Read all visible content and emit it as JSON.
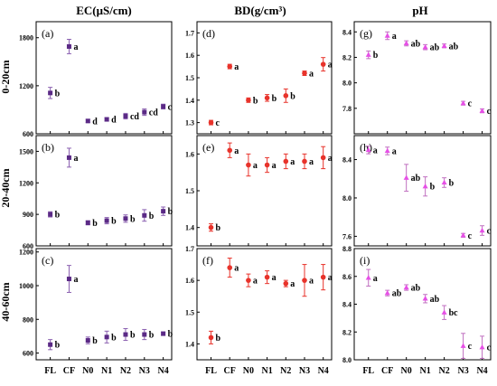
{
  "figure": {
    "column_titles": [
      "EC(μS/cm)",
      "BD(g/cm³)",
      "pH"
    ],
    "row_labels": [
      "0-20cm",
      "20-40cm",
      "40-60cm"
    ],
    "x_tick_labels": [
      "FL",
      "CF",
      "N0",
      "N1",
      "N2",
      "N3",
      "N4"
    ]
  },
  "colors": {
    "EC": "#5b2a86",
    "BD": "#e8332b",
    "pH": "#e650e6",
    "error_EC": "#8a5fb0",
    "error_BD": "#e8332b",
    "error_pH": "#c070c0"
  },
  "chart_data": [
    {
      "panel": "(a)",
      "type": "scatter",
      "variable": "EC",
      "depth": "0-20cm",
      "categories": [
        "FL",
        "CF",
        "N0",
        "N1",
        "N2",
        "N3",
        "N4"
      ],
      "values": [
        1110,
        1690,
        760,
        780,
        820,
        870,
        940
      ],
      "errors": [
        70,
        90,
        20,
        20,
        35,
        40,
        30
      ],
      "letters": [
        "b",
        "a",
        "d",
        "d",
        "cd",
        "cd",
        "c"
      ],
      "ylim": [
        600,
        2000
      ],
      "yticks": [
        600,
        1200,
        1800
      ]
    },
    {
      "panel": "(d)",
      "type": "scatter",
      "variable": "BD",
      "depth": "0-20cm",
      "categories": [
        "FL",
        "CF",
        "N0",
        "N1",
        "N2",
        "N3",
        "N4"
      ],
      "values": [
        1.3,
        1.55,
        1.4,
        1.41,
        1.42,
        1.52,
        1.56
      ],
      "errors": [
        0.01,
        0.01,
        0.01,
        0.015,
        0.03,
        0.01,
        0.03
      ],
      "letters": [
        "c",
        "a",
        "b",
        "b",
        "b",
        "a",
        "a"
      ],
      "ylim": [
        1.25,
        1.75
      ],
      "yticks": [
        1.3,
        1.4,
        1.5,
        1.6,
        1.7
      ]
    },
    {
      "panel": "(g)",
      "type": "scatter",
      "variable": "pH",
      "depth": "0-20cm",
      "categories": [
        "FL",
        "CF",
        "N0",
        "N1",
        "N2",
        "N3",
        "N4"
      ],
      "values": [
        8.22,
        8.37,
        8.31,
        8.28,
        8.29,
        7.84,
        7.78
      ],
      "errors": [
        0.03,
        0.03,
        0.02,
        0.02,
        0.015,
        0.015,
        0.015
      ],
      "letters": [
        "b",
        "a",
        "ab",
        "ab",
        "ab",
        "c",
        "c"
      ],
      "ylim": [
        7.6,
        8.48
      ],
      "yticks": [
        7.8,
        8.0,
        8.2,
        8.4
      ]
    },
    {
      "panel": "(b)",
      "type": "scatter",
      "variable": "EC",
      "depth": "20-40cm",
      "categories": [
        "FL",
        "CF",
        "N0",
        "N1",
        "N2",
        "N3",
        "N4"
      ],
      "values": [
        900,
        1440,
        820,
        840,
        860,
        890,
        930
      ],
      "errors": [
        25,
        90,
        20,
        30,
        35,
        55,
        40
      ],
      "letters": [
        "b",
        "a",
        "b",
        "b",
        "b",
        "b",
        "b"
      ],
      "ylim": [
        600,
        1650
      ],
      "yticks": [
        600,
        900,
        1200,
        1500
      ]
    },
    {
      "panel": "(e)",
      "type": "scatter",
      "variable": "BD",
      "depth": "20-40cm",
      "categories": [
        "FL",
        "CF",
        "N0",
        "N1",
        "N2",
        "N3",
        "N4"
      ],
      "values": [
        1.4,
        1.61,
        1.57,
        1.57,
        1.58,
        1.58,
        1.59
      ],
      "errors": [
        0.01,
        0.02,
        0.03,
        0.02,
        0.02,
        0.02,
        0.03
      ],
      "letters": [
        "b",
        "a",
        "a",
        "a",
        "a",
        "a",
        "a"
      ],
      "ylim": [
        1.35,
        1.65
      ],
      "yticks": [
        1.4,
        1.5,
        1.6
      ]
    },
    {
      "panel": "(h)",
      "type": "scatter",
      "variable": "pH",
      "depth": "20-40cm",
      "categories": [
        "FL",
        "CF",
        "N0",
        "N1",
        "N2",
        "N3",
        "N4"
      ],
      "values": [
        8.5,
        8.49,
        8.21,
        8.12,
        8.16,
        7.61,
        7.66
      ],
      "errors": [
        0.04,
        0.04,
        0.14,
        0.1,
        0.05,
        0.02,
        0.05
      ],
      "letters": [
        "a",
        "a",
        "ab",
        "b",
        "b",
        "c",
        "c"
      ],
      "ylim": [
        7.5,
        8.65
      ],
      "yticks": [
        7.6,
        8.0,
        8.4
      ]
    },
    {
      "panel": "(c)",
      "type": "scatter",
      "variable": "EC",
      "depth": "40-60cm",
      "categories": [
        "FL",
        "CF",
        "N0",
        "N1",
        "N2",
        "N3",
        "N4"
      ],
      "values": [
        650,
        1040,
        675,
        695,
        710,
        710,
        715
      ],
      "errors": [
        30,
        80,
        20,
        35,
        35,
        30,
        10
      ],
      "letters": [
        "b",
        "a",
        "b",
        "b",
        "b",
        "b",
        "b"
      ],
      "ylim": [
        560,
        1220
      ],
      "yticks": [
        600,
        800,
        1000,
        1200
      ]
    },
    {
      "panel": "(f)",
      "type": "scatter",
      "variable": "BD",
      "depth": "40-60cm",
      "categories": [
        "FL",
        "CF",
        "N0",
        "N1",
        "N2",
        "N3",
        "N4"
      ],
      "values": [
        1.42,
        1.64,
        1.6,
        1.61,
        1.59,
        1.6,
        1.61
      ],
      "errors": [
        0.02,
        0.03,
        0.02,
        0.02,
        0.01,
        0.05,
        0.04
      ],
      "letters": [
        "b",
        "a",
        "a",
        "a",
        "a",
        "a",
        "a"
      ],
      "ylim": [
        1.35,
        1.7
      ],
      "yticks": [
        1.4,
        1.5,
        1.6,
        1.7
      ]
    },
    {
      "panel": "(i)",
      "type": "scatter",
      "variable": "pH",
      "depth": "40-60cm",
      "categories": [
        "FL",
        "CF",
        "N0",
        "N1",
        "N2",
        "N3",
        "N4"
      ],
      "values": [
        8.59,
        8.48,
        8.52,
        8.44,
        8.34,
        8.1,
        8.09
      ],
      "errors": [
        0.06,
        0.02,
        0.02,
        0.03,
        0.05,
        0.09,
        0.08
      ],
      "letters": [
        "a",
        "ab",
        "ab",
        "ab",
        "bc",
        "c",
        "c"
      ],
      "ylim": [
        8.0,
        8.8
      ],
      "yticks": [
        8.0,
        8.2,
        8.4,
        8.6,
        8.8
      ]
    }
  ]
}
